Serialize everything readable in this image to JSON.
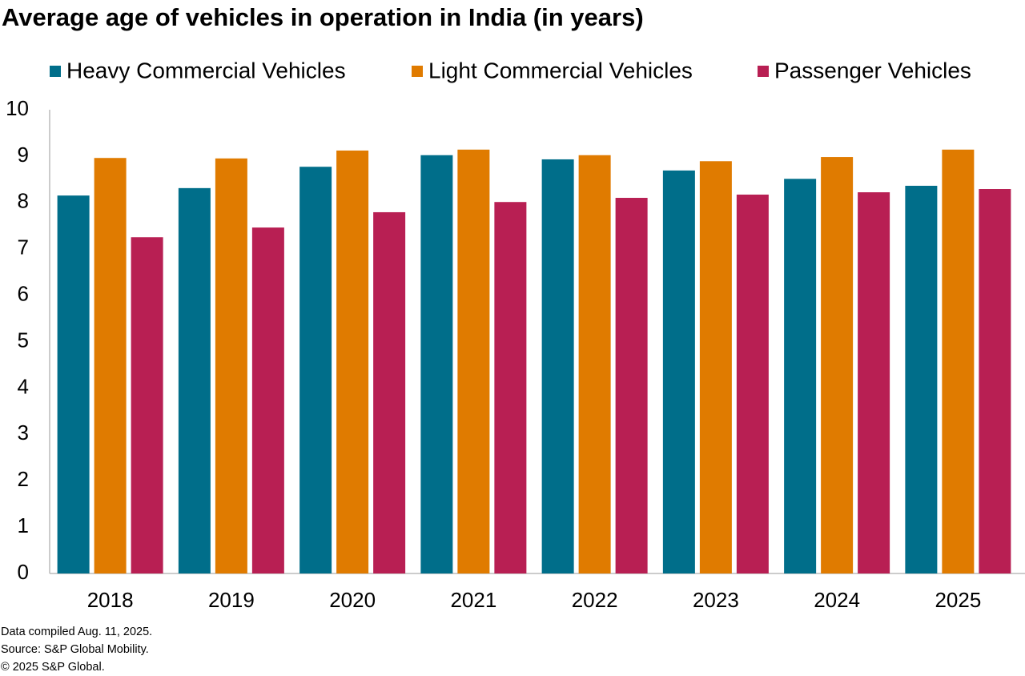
{
  "chart_data": {
    "type": "bar",
    "title": "Average age of vehicles in operation in India (in years)",
    "categories": [
      "2018",
      "2019",
      "2020",
      "2021",
      "2022",
      "2023",
      "2024",
      "2025"
    ],
    "series": [
      {
        "name": "Heavy Commercial Vehicles",
        "color": "#006e8a",
        "values": [
          8.15,
          8.31,
          8.77,
          9.02,
          8.93,
          8.69,
          8.51,
          8.36
        ]
      },
      {
        "name": "Light Commercial Vehicles",
        "color": "#e07b00",
        "values": [
          8.96,
          8.95,
          9.12,
          9.14,
          9.02,
          8.89,
          8.98,
          9.14
        ]
      },
      {
        "name": "Passenger Vehicles",
        "color": "#b81f53",
        "values": [
          7.25,
          7.46,
          7.79,
          8.01,
          8.1,
          8.17,
          8.22,
          8.29
        ]
      }
    ],
    "ylim": [
      0,
      10
    ],
    "yticks": [
      0,
      1,
      2,
      3,
      4,
      5,
      6,
      7,
      8,
      9,
      10
    ],
    "grid": false,
    "notes": [
      "Data compiled Aug. 11, 2025.",
      "Source: S&P Global Mobility.",
      "© 2025 S&P Global."
    ]
  }
}
